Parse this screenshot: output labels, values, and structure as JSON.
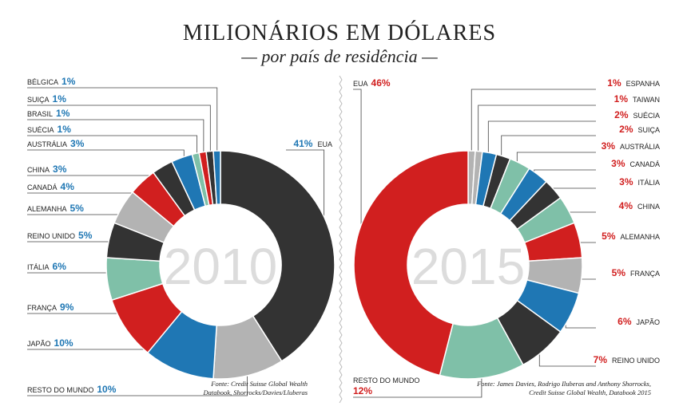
{
  "title": "MILIONÁRIOS EM DÓLARES",
  "subtitle": "— por país de residência —",
  "colors": {
    "dark": "#333333",
    "gray": "#b3b3b3",
    "blue": "#1f77b4",
    "red": "#d11f1f",
    "green": "#7fc0a8",
    "pct2010": "#1f77b4",
    "pct2015": "#d11f1f"
  },
  "chart_data": [
    {
      "type": "pie",
      "year_label": "2010",
      "source": [
        "Fonte: Credit Suisse Global Wealth",
        "Databook, Shorrocks/Davies/Lluberas"
      ],
      "slices": [
        {
          "name": "EUA",
          "value": 41,
          "label": "41%",
          "color": "dark"
        },
        {
          "name": "RESTO DO MUNDO",
          "value": 10,
          "label": "10%",
          "color": "gray"
        },
        {
          "name": "JAPÃO",
          "value": 10,
          "label": "10%",
          "color": "blue"
        },
        {
          "name": "FRANÇA",
          "value": 9,
          "label": "9%",
          "color": "red"
        },
        {
          "name": "ITÁLIA",
          "value": 6,
          "label": "6%",
          "color": "green"
        },
        {
          "name": "REINO UNIDO",
          "value": 5,
          "label": "5%",
          "color": "dark"
        },
        {
          "name": "ALEMANHA",
          "value": 5,
          "label": "5%",
          "color": "gray"
        },
        {
          "name": "CANADÁ",
          "value": 4,
          "label": "4%",
          "color": "red"
        },
        {
          "name": "CHINA",
          "value": 3,
          "label": "3%",
          "color": "dark"
        },
        {
          "name": "AUSTRÁLIA",
          "value": 3,
          "label": "3%",
          "color": "blue"
        },
        {
          "name": "SUÉCIA",
          "value": 1,
          "label": "1%",
          "color": "green"
        },
        {
          "name": "BRASIL",
          "value": 1,
          "label": "1%",
          "color": "red"
        },
        {
          "name": "SUIÇA",
          "value": 1,
          "label": "1%",
          "color": "dark"
        },
        {
          "name": "BÉLGICA",
          "value": 1,
          "label": "1%",
          "color": "blue"
        }
      ]
    },
    {
      "type": "pie",
      "year_label": "2015",
      "source": [
        "Fonte: James Davies, Rodrigo Iluberas and Anthony Shorrocks,",
        "Credit Suisse Global Wealth, Databook 2015"
      ],
      "slices": [
        {
          "name": "ESPANHA",
          "value": 1,
          "label": "1%",
          "color": "gray"
        },
        {
          "name": "TAIWAN",
          "value": 1,
          "label": "1%",
          "color": "gray"
        },
        {
          "name": "SUÉCIA",
          "value": 2,
          "label": "2%",
          "color": "blue"
        },
        {
          "name": "SUIÇA",
          "value": 2,
          "label": "2%",
          "color": "dark"
        },
        {
          "name": "AUSTRÁLIA",
          "value": 3,
          "label": "3%",
          "color": "green"
        },
        {
          "name": "CANADÁ",
          "value": 3,
          "label": "3%",
          "color": "blue"
        },
        {
          "name": "ITÁLIA",
          "value": 3,
          "label": "3%",
          "color": "dark"
        },
        {
          "name": "CHINA",
          "value": 4,
          "label": "4%",
          "color": "green"
        },
        {
          "name": "ALEMANHA",
          "value": 5,
          "label": "5%",
          "color": "red"
        },
        {
          "name": "FRANÇA",
          "value": 5,
          "label": "5%",
          "color": "gray"
        },
        {
          "name": "JAPÃO",
          "value": 6,
          "label": "6%",
          "color": "blue"
        },
        {
          "name": "REINO UNIDO",
          "value": 7,
          "label": "7%",
          "color": "dark"
        },
        {
          "name": "RESTO DO MUNDO",
          "value": 12,
          "label": "12%",
          "color": "green"
        },
        {
          "name": "EUA",
          "value": 46,
          "label": "46%",
          "color": "red"
        }
      ]
    }
  ]
}
